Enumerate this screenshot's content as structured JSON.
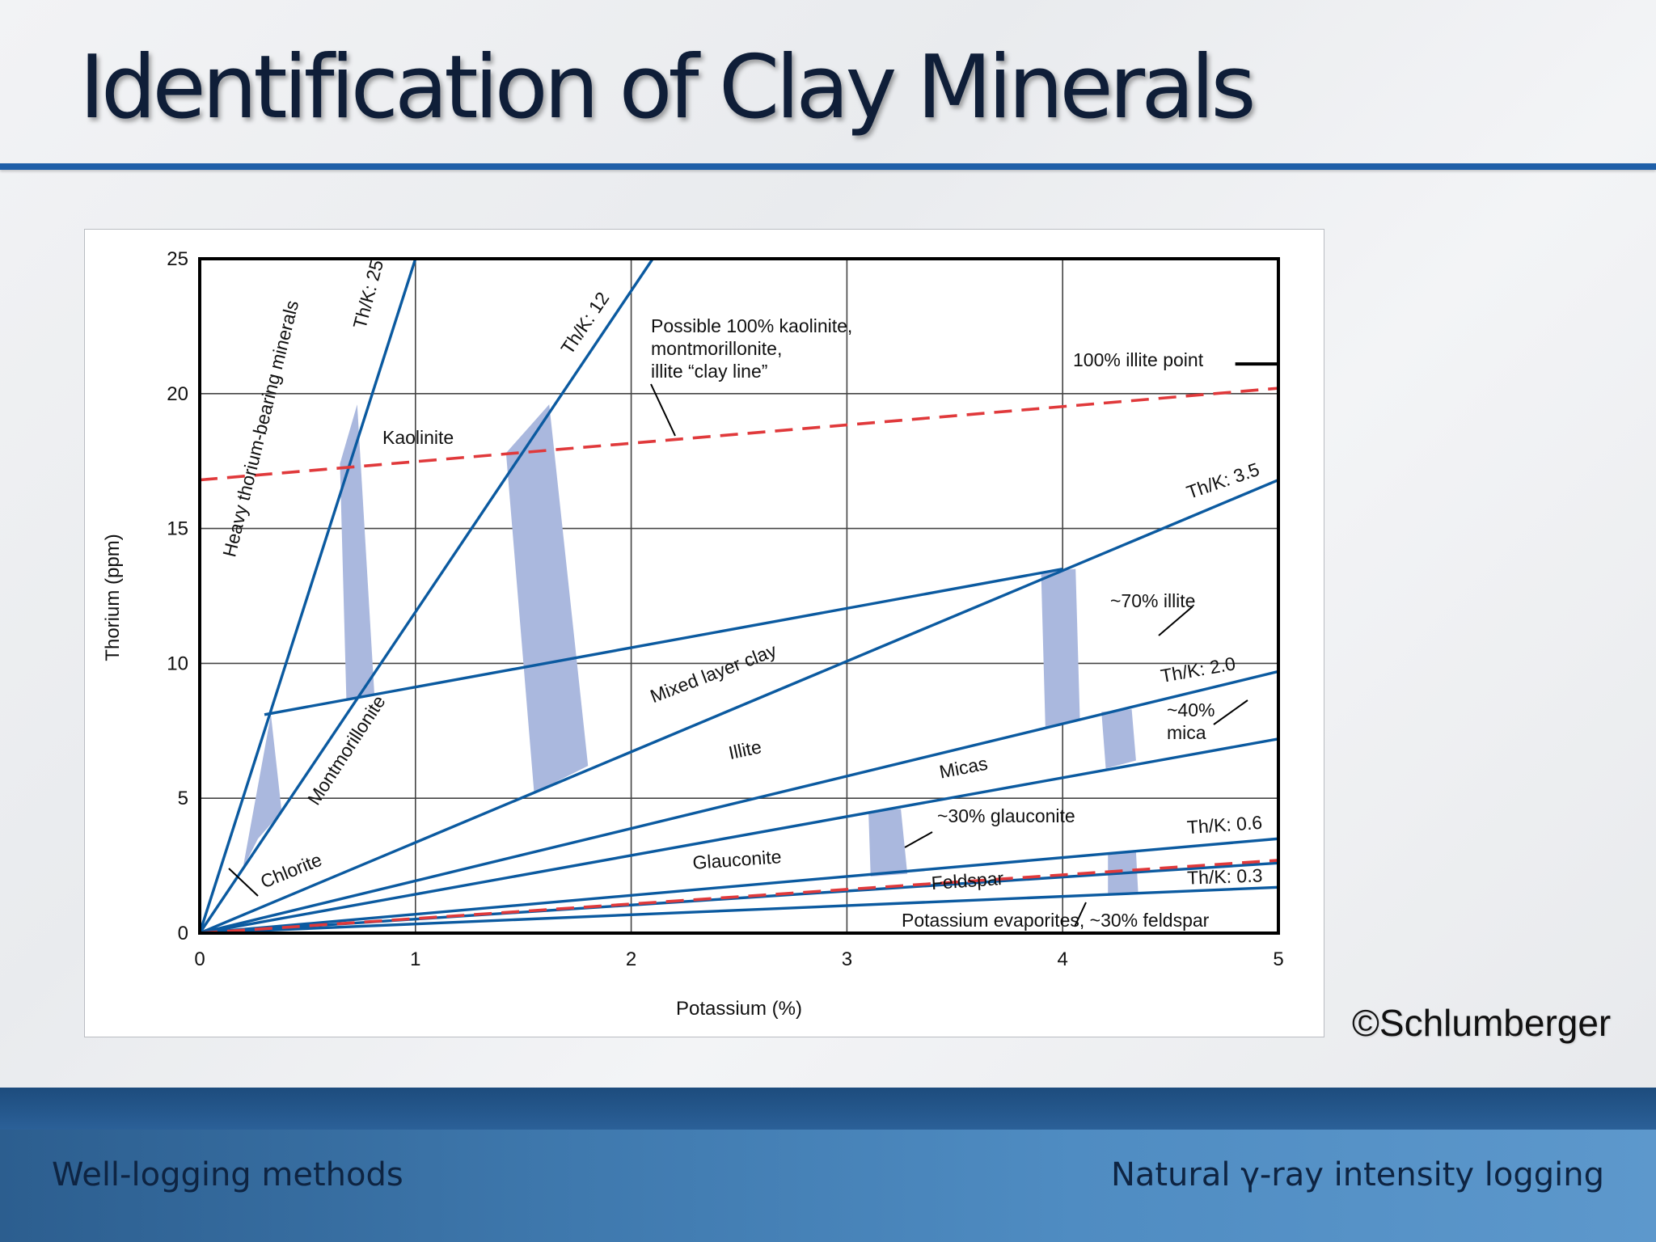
{
  "slide": {
    "title": "Identification of Clay Minerals",
    "copyright": "©Schlumberger",
    "footer_left": "Well-logging methods",
    "footer_right": "Natural γ-ray intensity logging"
  },
  "colors": {
    "title": "#0f1e38",
    "accent_rule": "#1f5fa8",
    "line": "#0b5aa0",
    "band": "#aab8de",
    "clay_line": "#e0393b"
  },
  "chart_data": {
    "type": "line",
    "xlabel": "Potassium (%)",
    "ylabel": "Thorium (ppm)",
    "xlim": [
      0,
      5
    ],
    "ylim": [
      0,
      25
    ],
    "x_ticks": [
      "0",
      "1",
      "2",
      "3",
      "4",
      "5"
    ],
    "y_ticks": [
      "0",
      "5",
      "10",
      "15",
      "20",
      "25"
    ],
    "grid": true,
    "series": [
      {
        "name": "Th/K: 25",
        "points": [
          [
            0,
            0
          ],
          [
            1.0,
            25
          ]
        ]
      },
      {
        "name": "Th/K: 12",
        "points": [
          [
            0,
            0
          ],
          [
            2.1,
            25
          ]
        ]
      },
      {
        "name": "Th/K: 3.5",
        "points": [
          [
            0,
            0
          ],
          [
            5,
            16.8
          ]
        ]
      },
      {
        "name": "Th/K: 2.0",
        "points": [
          [
            0,
            0
          ],
          [
            5,
            9.7
          ]
        ]
      },
      {
        "name": "Th/K: 0.6",
        "points": [
          [
            0,
            0
          ],
          [
            5,
            3.5
          ]
        ]
      },
      {
        "name": "Th/K: 0.3",
        "points": [
          [
            0,
            0
          ],
          [
            5,
            1.7
          ]
        ]
      },
      {
        "points": [
          [
            0.3,
            8.1
          ],
          [
            4.0,
            13.5
          ]
        ]
      },
      {
        "points": [
          [
            0,
            0
          ],
          [
            5,
            7.2
          ]
        ]
      },
      {
        "points": [
          [
            0,
            0
          ],
          [
            5,
            2.6
          ]
        ]
      }
    ],
    "dashed_lines": [
      {
        "points": [
          [
            0,
            16.8
          ],
          [
            5,
            20.2
          ]
        ]
      },
      {
        "points": [
          [
            0,
            0
          ],
          [
            5,
            2.7
          ]
        ]
      }
    ],
    "illite_point": {
      "x_range": [
        4.8,
        5.0
      ],
      "y": 21.1,
      "label": "100% illite point"
    },
    "bands": [
      {
        "corners": [
          [
            0.2,
            2.4
          ],
          [
            0.33,
            8.1
          ],
          [
            0.38,
            4.5
          ],
          [
            0.27,
            3.5
          ]
        ]
      },
      {
        "corners": [
          [
            0.65,
            17.4
          ],
          [
            0.73,
            19.6
          ],
          [
            0.81,
            8.8
          ],
          [
            0.68,
            8.6
          ]
        ]
      },
      {
        "corners": [
          [
            1.42,
            17.8
          ],
          [
            1.62,
            19.6
          ],
          [
            1.8,
            6.2
          ],
          [
            1.55,
            5.2
          ]
        ]
      },
      {
        "corners": [
          [
            3.9,
            13.4
          ],
          [
            4.06,
            13.5
          ],
          [
            4.08,
            7.9
          ],
          [
            3.92,
            7.6
          ]
        ]
      },
      {
        "corners": [
          [
            4.18,
            8.2
          ],
          [
            4.32,
            8.3
          ],
          [
            4.34,
            6.4
          ],
          [
            4.2,
            6.1
          ]
        ]
      },
      {
        "corners": [
          [
            3.1,
            4.5
          ],
          [
            3.25,
            4.6
          ],
          [
            3.28,
            2.2
          ],
          [
            3.11,
            2.1
          ]
        ]
      },
      {
        "corners": [
          [
            4.21,
            2.9
          ],
          [
            4.34,
            3.0
          ],
          [
            4.35,
            1.5
          ],
          [
            4.21,
            1.4
          ]
        ]
      }
    ],
    "annotations": [
      "Possible 100% kaolinite,",
      "montmorillonite,",
      "illite “clay line”",
      "Heavy thorium-bearing minerals",
      "Kaolinite",
      "Montmorillonite",
      "Chlorite",
      "Mixed layer clay",
      "Illite",
      "Micas",
      "~70% illite",
      "~40%",
      "mica",
      "~30% glauconite",
      "Glauconite",
      "Feldspar",
      "Potassium evaporites, ~30% feldspar"
    ]
  }
}
